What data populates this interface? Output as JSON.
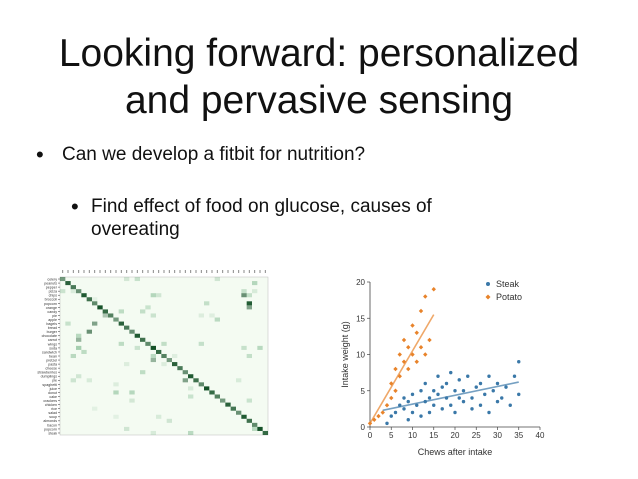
{
  "slide": {
    "title_line1": "Looking forward: personalized",
    "title_line2": "and pervasive sensing",
    "bullet1": "Can we develop a fitbit for nutrition?",
    "bullet2": "Find effect of food on glucose, causes of overeating"
  },
  "chart_data": [
    {
      "type": "heatmap",
      "title": "",
      "row_labels": [
        "celery",
        "peanuts",
        "pepper",
        "pizza",
        "chips",
        "broccoli",
        "popcorn",
        "orange",
        "candy",
        "pie",
        "apple",
        "bagels",
        "bread",
        "burger",
        "chocolate",
        "carrot",
        "wings",
        "soda",
        "sandwich",
        "bean",
        "pretzel",
        "pasta",
        "cheese",
        "strawberries",
        "dumplings",
        "pie",
        "spaghetti",
        "juice",
        "donut",
        "cake",
        "crackers",
        "chicken",
        "rice",
        "salad",
        "soup",
        "almonds",
        "bacon",
        "popcorn",
        "steak"
      ],
      "pattern": "strong diagonal with sparse off-diagonal cells",
      "colors": {
        "low": "#f4fbf2",
        "high": "#0b4a1f"
      }
    },
    {
      "type": "scatter",
      "title": "",
      "xlabel": "Chews after intake",
      "ylabel": "Intake weight (g)",
      "xlim": [
        0,
        40
      ],
      "ylim": [
        0,
        20
      ],
      "xticks": [
        0,
        5,
        10,
        15,
        20,
        25,
        30,
        35,
        40
      ],
      "yticks": [
        0,
        5,
        10,
        15,
        20
      ],
      "legend_position": "top-right",
      "series": [
        {
          "name": "Steak",
          "color": "#3a78a8",
          "marker": "circle",
          "points": [
            [
              4,
              0.5
            ],
            [
              5,
              1.5
            ],
            [
              6,
              2
            ],
            [
              7,
              3
            ],
            [
              8,
              2.5
            ],
            [
              8,
              4
            ],
            [
              9,
              1
            ],
            [
              9,
              3.5
            ],
            [
              10,
              2
            ],
            [
              10,
              4.5
            ],
            [
              11,
              3
            ],
            [
              12,
              5
            ],
            [
              12,
              1.5
            ],
            [
              13,
              3.5
            ],
            [
              13,
              6
            ],
            [
              14,
              4
            ],
            [
              14,
              2
            ],
            [
              15,
              5
            ],
            [
              15,
              3
            ],
            [
              16,
              4.5
            ],
            [
              16,
              7
            ],
            [
              17,
              2.5
            ],
            [
              17,
              5.5
            ],
            [
              18,
              4
            ],
            [
              18,
              6
            ],
            [
              19,
              3
            ],
            [
              19,
              7.5
            ],
            [
              20,
              5
            ],
            [
              20,
              2
            ],
            [
              21,
              4
            ],
            [
              21,
              6.5
            ],
            [
              22,
              3.5
            ],
            [
              22,
              5
            ],
            [
              23,
              7
            ],
            [
              24,
              4
            ],
            [
              24,
              2.5
            ],
            [
              25,
              5.5
            ],
            [
              26,
              3
            ],
            [
              26,
              6
            ],
            [
              27,
              4.5
            ],
            [
              28,
              7
            ],
            [
              28,
              2
            ],
            [
              29,
              5
            ],
            [
              30,
              3.5
            ],
            [
              30,
              6
            ],
            [
              31,
              4
            ],
            [
              32,
              5.5
            ],
            [
              33,
              3
            ],
            [
              34,
              7
            ],
            [
              35,
              4.5
            ],
            [
              35,
              9
            ]
          ],
          "fit_line": [
            [
              3,
              2.3
            ],
            [
              35,
              6.2
            ]
          ]
        },
        {
          "name": "Potato",
          "color": "#e8832a",
          "marker": "diamond",
          "points": [
            [
              0,
              0.5
            ],
            [
              1,
              1
            ],
            [
              2,
              1.5
            ],
            [
              3,
              2
            ],
            [
              4,
              3
            ],
            [
              5,
              4
            ],
            [
              5,
              6
            ],
            [
              6,
              5
            ],
            [
              6,
              8
            ],
            [
              7,
              7
            ],
            [
              7,
              10
            ],
            [
              8,
              9
            ],
            [
              8,
              12
            ],
            [
              9,
              8
            ],
            [
              9,
              11
            ],
            [
              10,
              10
            ],
            [
              10,
              14
            ],
            [
              11,
              9
            ],
            [
              11,
              13
            ],
            [
              12,
              11
            ],
            [
              12,
              16
            ],
            [
              13,
              10
            ],
            [
              13,
              18
            ],
            [
              14,
              12
            ],
            [
              15,
              19
            ]
          ],
          "fit_line": [
            [
              0,
              0.5
            ],
            [
              15,
              15.5
            ]
          ]
        }
      ]
    }
  ]
}
